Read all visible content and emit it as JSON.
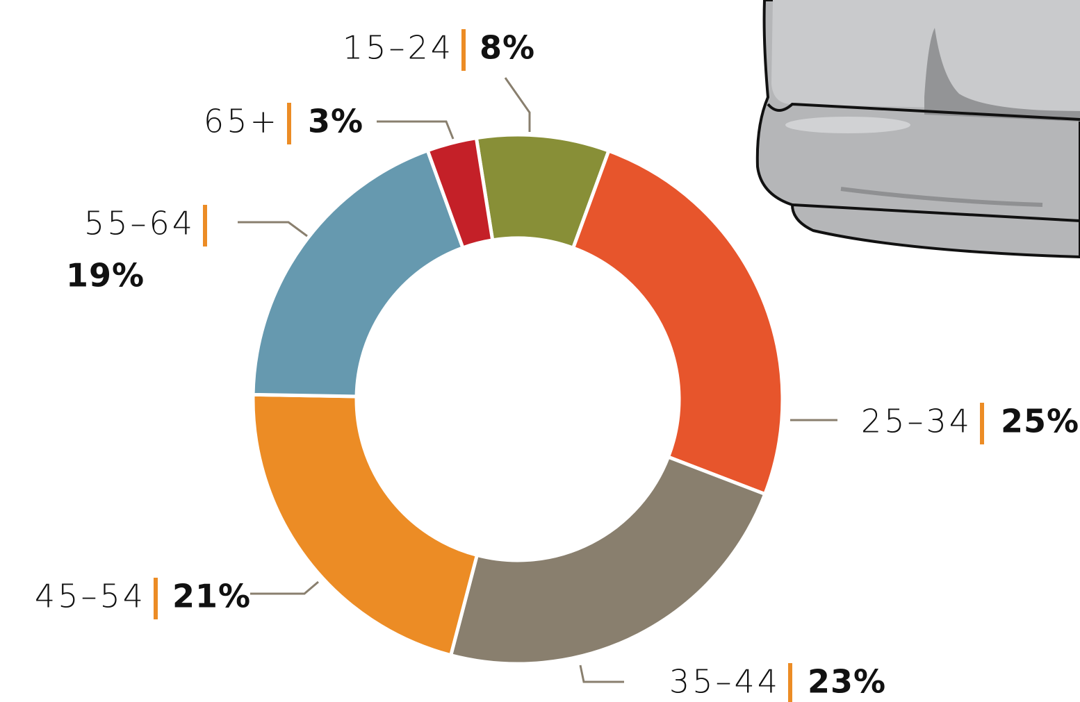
{
  "chart_data": {
    "type": "donut",
    "categories": [
      "15–24",
      "25–34",
      "35–44",
      "45–54",
      "55–64",
      "65+"
    ],
    "values": [
      8,
      25,
      23,
      21,
      19,
      3
    ],
    "value_labels": [
      "8%",
      "25%",
      "23%",
      "21%",
      "19%",
      "3%"
    ],
    "colors": [
      "#888f37",
      "#e7552c",
      "#897f6e",
      "#ec8c25",
      "#6699af",
      "#c42028"
    ]
  }
}
